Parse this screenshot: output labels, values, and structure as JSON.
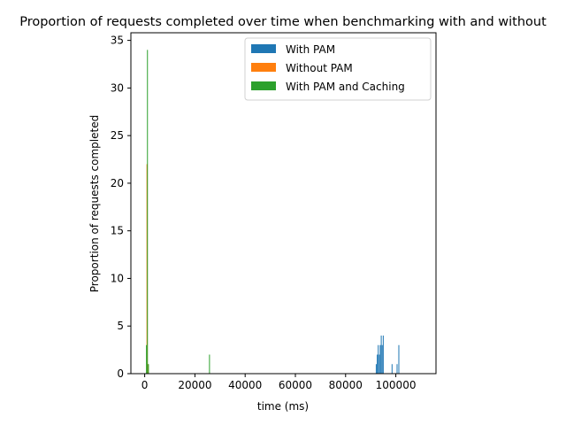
{
  "chart_data": {
    "type": "bar",
    "title": "Proportion of requests completed over time when benchmarking with and without",
    "xlabel": "time (ms)",
    "ylabel": "Proportion of requests completed",
    "xlim": [
      -5500,
      116000
    ],
    "ylim": [
      0,
      35.8
    ],
    "x_ticks": [
      0,
      20000,
      40000,
      60000,
      80000,
      100000
    ],
    "y_ticks": [
      0,
      5,
      10,
      15,
      20,
      25,
      30,
      35
    ],
    "bar_width": 350,
    "legend_position": "upper-right",
    "grid": false,
    "series": [
      {
        "name": "With PAM",
        "color": "#1f77b4",
        "points": [
          {
            "x": 92200,
            "y": 1
          },
          {
            "x": 92600,
            "y": 2
          },
          {
            "x": 93000,
            "y": 3
          },
          {
            "x": 93400,
            "y": 2
          },
          {
            "x": 93800,
            "y": 3
          },
          {
            "x": 94200,
            "y": 4
          },
          {
            "x": 94600,
            "y": 3
          },
          {
            "x": 95000,
            "y": 4
          },
          {
            "x": 98500,
            "y": 1
          },
          {
            "x": 100500,
            "y": 1
          },
          {
            "x": 101200,
            "y": 3
          }
        ]
      },
      {
        "name": "Without PAM",
        "color": "#ff7f0e",
        "points": [
          {
            "x": 900,
            "y": 22
          },
          {
            "x": 1300,
            "y": 1
          }
        ]
      },
      {
        "name": "With PAM and Caching",
        "color": "#2ca02c",
        "points": [
          {
            "x": 700,
            "y": 3
          },
          {
            "x": 1100,
            "y": 34
          },
          {
            "x": 1500,
            "y": 1
          },
          {
            "x": 25800,
            "y": 2
          }
        ]
      }
    ]
  }
}
